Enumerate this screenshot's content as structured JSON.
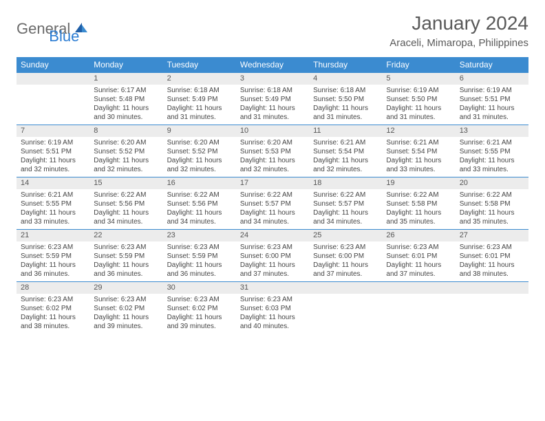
{
  "brand": {
    "general": "General",
    "blue": "Blue"
  },
  "header": {
    "month": "January 2024",
    "location": "Araceli, Mimaropa, Philippines"
  },
  "colors": {
    "header_bg": "#3b8bd0",
    "header_text": "#ffffff",
    "daynum_bg": "#ececec",
    "row_border": "#3b8bd0",
    "text": "#444444",
    "title": "#595959"
  },
  "dayNames": [
    "Sunday",
    "Monday",
    "Tuesday",
    "Wednesday",
    "Thursday",
    "Friday",
    "Saturday"
  ],
  "weeks": [
    [
      {
        "num": "",
        "sunrise": "",
        "sunset": "",
        "daylight": ""
      },
      {
        "num": "1",
        "sunrise": "Sunrise: 6:17 AM",
        "sunset": "Sunset: 5:48 PM",
        "daylight": "Daylight: 11 hours and 30 minutes."
      },
      {
        "num": "2",
        "sunrise": "Sunrise: 6:18 AM",
        "sunset": "Sunset: 5:49 PM",
        "daylight": "Daylight: 11 hours and 31 minutes."
      },
      {
        "num": "3",
        "sunrise": "Sunrise: 6:18 AM",
        "sunset": "Sunset: 5:49 PM",
        "daylight": "Daylight: 11 hours and 31 minutes."
      },
      {
        "num": "4",
        "sunrise": "Sunrise: 6:18 AM",
        "sunset": "Sunset: 5:50 PM",
        "daylight": "Daylight: 11 hours and 31 minutes."
      },
      {
        "num": "5",
        "sunrise": "Sunrise: 6:19 AM",
        "sunset": "Sunset: 5:50 PM",
        "daylight": "Daylight: 11 hours and 31 minutes."
      },
      {
        "num": "6",
        "sunrise": "Sunrise: 6:19 AM",
        "sunset": "Sunset: 5:51 PM",
        "daylight": "Daylight: 11 hours and 31 minutes."
      }
    ],
    [
      {
        "num": "7",
        "sunrise": "Sunrise: 6:19 AM",
        "sunset": "Sunset: 5:51 PM",
        "daylight": "Daylight: 11 hours and 32 minutes."
      },
      {
        "num": "8",
        "sunrise": "Sunrise: 6:20 AM",
        "sunset": "Sunset: 5:52 PM",
        "daylight": "Daylight: 11 hours and 32 minutes."
      },
      {
        "num": "9",
        "sunrise": "Sunrise: 6:20 AM",
        "sunset": "Sunset: 5:52 PM",
        "daylight": "Daylight: 11 hours and 32 minutes."
      },
      {
        "num": "10",
        "sunrise": "Sunrise: 6:20 AM",
        "sunset": "Sunset: 5:53 PM",
        "daylight": "Daylight: 11 hours and 32 minutes."
      },
      {
        "num": "11",
        "sunrise": "Sunrise: 6:21 AM",
        "sunset": "Sunset: 5:54 PM",
        "daylight": "Daylight: 11 hours and 32 minutes."
      },
      {
        "num": "12",
        "sunrise": "Sunrise: 6:21 AM",
        "sunset": "Sunset: 5:54 PM",
        "daylight": "Daylight: 11 hours and 33 minutes."
      },
      {
        "num": "13",
        "sunrise": "Sunrise: 6:21 AM",
        "sunset": "Sunset: 5:55 PM",
        "daylight": "Daylight: 11 hours and 33 minutes."
      }
    ],
    [
      {
        "num": "14",
        "sunrise": "Sunrise: 6:21 AM",
        "sunset": "Sunset: 5:55 PM",
        "daylight": "Daylight: 11 hours and 33 minutes."
      },
      {
        "num": "15",
        "sunrise": "Sunrise: 6:22 AM",
        "sunset": "Sunset: 5:56 PM",
        "daylight": "Daylight: 11 hours and 34 minutes."
      },
      {
        "num": "16",
        "sunrise": "Sunrise: 6:22 AM",
        "sunset": "Sunset: 5:56 PM",
        "daylight": "Daylight: 11 hours and 34 minutes."
      },
      {
        "num": "17",
        "sunrise": "Sunrise: 6:22 AM",
        "sunset": "Sunset: 5:57 PM",
        "daylight": "Daylight: 11 hours and 34 minutes."
      },
      {
        "num": "18",
        "sunrise": "Sunrise: 6:22 AM",
        "sunset": "Sunset: 5:57 PM",
        "daylight": "Daylight: 11 hours and 34 minutes."
      },
      {
        "num": "19",
        "sunrise": "Sunrise: 6:22 AM",
        "sunset": "Sunset: 5:58 PM",
        "daylight": "Daylight: 11 hours and 35 minutes."
      },
      {
        "num": "20",
        "sunrise": "Sunrise: 6:22 AM",
        "sunset": "Sunset: 5:58 PM",
        "daylight": "Daylight: 11 hours and 35 minutes."
      }
    ],
    [
      {
        "num": "21",
        "sunrise": "Sunrise: 6:23 AM",
        "sunset": "Sunset: 5:59 PM",
        "daylight": "Daylight: 11 hours and 36 minutes."
      },
      {
        "num": "22",
        "sunrise": "Sunrise: 6:23 AM",
        "sunset": "Sunset: 5:59 PM",
        "daylight": "Daylight: 11 hours and 36 minutes."
      },
      {
        "num": "23",
        "sunrise": "Sunrise: 6:23 AM",
        "sunset": "Sunset: 5:59 PM",
        "daylight": "Daylight: 11 hours and 36 minutes."
      },
      {
        "num": "24",
        "sunrise": "Sunrise: 6:23 AM",
        "sunset": "Sunset: 6:00 PM",
        "daylight": "Daylight: 11 hours and 37 minutes."
      },
      {
        "num": "25",
        "sunrise": "Sunrise: 6:23 AM",
        "sunset": "Sunset: 6:00 PM",
        "daylight": "Daylight: 11 hours and 37 minutes."
      },
      {
        "num": "26",
        "sunrise": "Sunrise: 6:23 AM",
        "sunset": "Sunset: 6:01 PM",
        "daylight": "Daylight: 11 hours and 37 minutes."
      },
      {
        "num": "27",
        "sunrise": "Sunrise: 6:23 AM",
        "sunset": "Sunset: 6:01 PM",
        "daylight": "Daylight: 11 hours and 38 minutes."
      }
    ],
    [
      {
        "num": "28",
        "sunrise": "Sunrise: 6:23 AM",
        "sunset": "Sunset: 6:02 PM",
        "daylight": "Daylight: 11 hours and 38 minutes."
      },
      {
        "num": "29",
        "sunrise": "Sunrise: 6:23 AM",
        "sunset": "Sunset: 6:02 PM",
        "daylight": "Daylight: 11 hours and 39 minutes."
      },
      {
        "num": "30",
        "sunrise": "Sunrise: 6:23 AM",
        "sunset": "Sunset: 6:02 PM",
        "daylight": "Daylight: 11 hours and 39 minutes."
      },
      {
        "num": "31",
        "sunrise": "Sunrise: 6:23 AM",
        "sunset": "Sunset: 6:03 PM",
        "daylight": "Daylight: 11 hours and 40 minutes."
      },
      {
        "num": "",
        "sunrise": "",
        "sunset": "",
        "daylight": ""
      },
      {
        "num": "",
        "sunrise": "",
        "sunset": "",
        "daylight": ""
      },
      {
        "num": "",
        "sunrise": "",
        "sunset": "",
        "daylight": ""
      }
    ]
  ]
}
